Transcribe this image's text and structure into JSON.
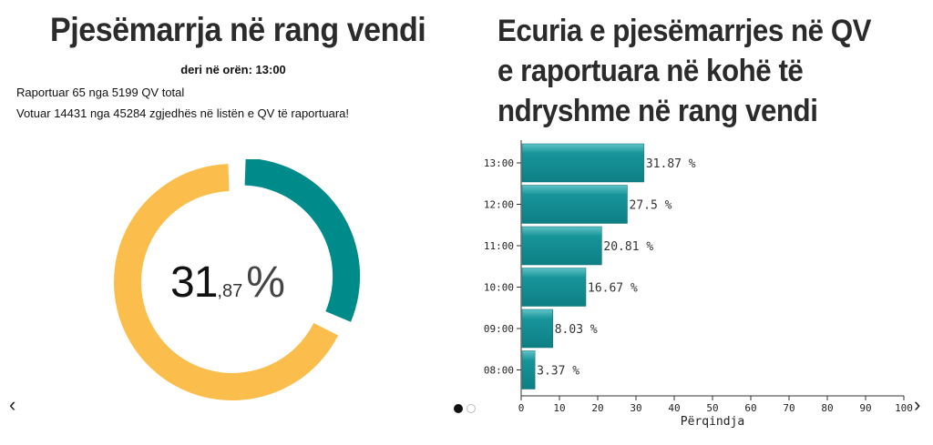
{
  "left": {
    "title": "Pjesëmarrja në rang vendi",
    "subtitle": "deri në orën: 13:00",
    "info_reported": "Raportuar 65 nga 5199 QV total",
    "info_voted": "Votuar 14431 nga 45284 zgjedhës në listën e QV të raportuara!",
    "donut": {
      "value_percent": 31.87,
      "int_label": "31",
      "dec_label": ",87",
      "unit_label": "%",
      "color_value": "#008b8b",
      "color_rest": "#fbbd4c"
    }
  },
  "right": {
    "title": "Ecuria e pjesëmarrjes në QV e raportuara në kohë të ndryshme në rang vendi"
  },
  "chart_data": {
    "type": "bar",
    "orientation": "horizontal",
    "categories": [
      "13:00",
      "12:00",
      "11:00",
      "10:00",
      "09:00",
      "08:00"
    ],
    "values": [
      31.87,
      27.5,
      20.81,
      16.67,
      8.03,
      3.37
    ],
    "value_labels": [
      "31.87 %",
      "27.5 %",
      "20.81 %",
      "16.67 %",
      "8.03 %",
      "3.37 %"
    ],
    "xlabel": "Përqindja",
    "xlim": [
      0,
      100
    ],
    "xticks": [
      0,
      10,
      20,
      30,
      40,
      50,
      60,
      70,
      80,
      90,
      100
    ],
    "bar_color": "#17959a"
  },
  "nav": {
    "prev": "‹",
    "next": "›",
    "slides": 2,
    "active_slide": 0
  }
}
